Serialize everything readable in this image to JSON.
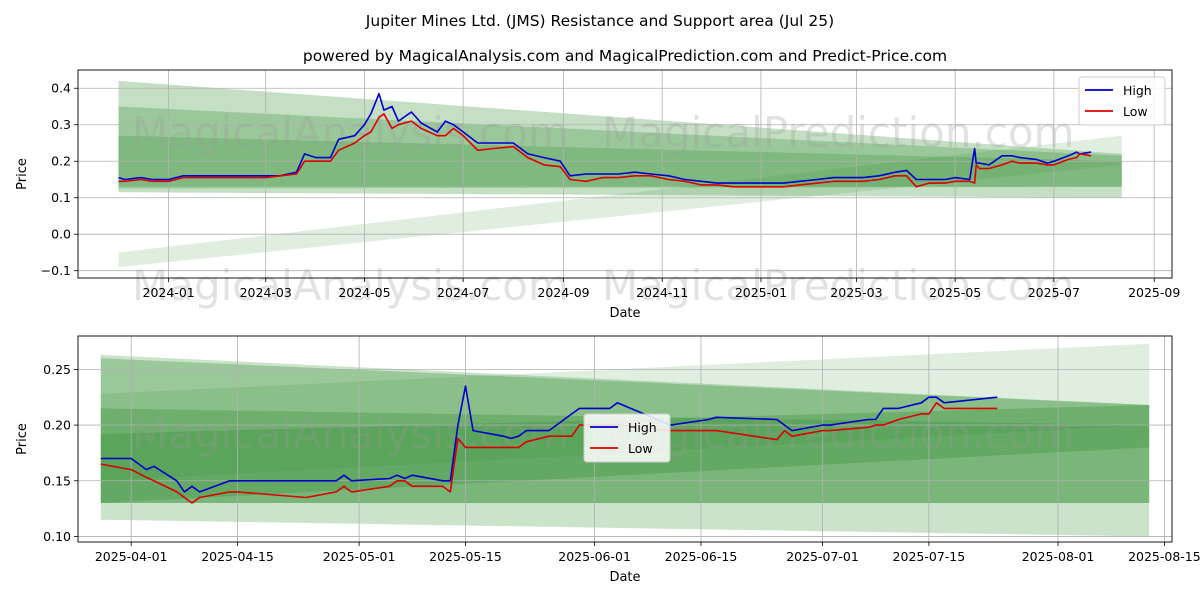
{
  "title": "Jupiter Mines Ltd. (JMS) Resistance and Support area (Jul 25)",
  "subtitle": "powered by MagicalAnalysis.com and MagicalPrediction.com and Predict-Price.com",
  "watermarks": [
    "MagicalAnalysis.com",
    "MagicalPrediction.com"
  ],
  "colors": {
    "high": "#0000cc",
    "low": "#dd0000",
    "band": "#2e8b2e",
    "grid": "#b0b0b0"
  },
  "chart_data": [
    {
      "type": "line",
      "xlabel": "Date",
      "ylabel": "Price",
      "ylim": [
        -0.12,
        0.45
      ],
      "yticks": [
        -0.1,
        0.0,
        0.1,
        0.2,
        0.3,
        0.4
      ],
      "ytick_labels": [
        "−0.1",
        "0.0",
        "0.1",
        "0.2",
        "0.3",
        "0.4"
      ],
      "xlim": [
        "2023-11-06",
        "2025-09-12"
      ],
      "xticks": [
        "2024-01-01",
        "2024-03-01",
        "2024-05-01",
        "2024-07-01",
        "2024-09-01",
        "2024-11-01",
        "2025-01-01",
        "2025-03-01",
        "2025-05-01",
        "2025-07-01",
        "2025-09-01"
      ],
      "xtick_labels": [
        "2024-01",
        "2024-03",
        "2024-05",
        "2024-07",
        "2024-09",
        "2024-11",
        "2025-01",
        "2025-03",
        "2025-05",
        "2025-07",
        "2025-09"
      ],
      "grid": true,
      "legend": {
        "position": "top-right",
        "entries": [
          "High",
          "Low"
        ]
      },
      "bands": [
        {
          "x": [
            "2023-12-01",
            "2025-08-12"
          ],
          "upper": [
            0.42,
            0.22
          ],
          "lower": [
            0.115,
            0.1
          ],
          "opacity": 0.28
        },
        {
          "x": [
            "2023-12-01",
            "2025-08-12"
          ],
          "upper": [
            0.35,
            0.215
          ],
          "lower": [
            0.13,
            0.13
          ],
          "opacity": 0.28
        },
        {
          "x": [
            "2023-12-01",
            "2025-08-12"
          ],
          "upper": [
            0.27,
            0.2
          ],
          "lower": [
            0.125,
            0.13
          ],
          "opacity": 0.25
        },
        {
          "x": [
            "2023-12-01",
            "2025-08-12"
          ],
          "upper": [
            -0.05,
            0.27
          ],
          "lower": [
            -0.09,
            0.19
          ],
          "opacity": 0.15
        }
      ],
      "series": [
        {
          "name": "High",
          "x": [
            "2023-12-01",
            "2023-12-05",
            "2023-12-15",
            "2023-12-22",
            "2024-01-01",
            "2024-01-10",
            "2024-01-20",
            "2024-02-01",
            "2024-02-15",
            "2024-03-01",
            "2024-03-10",
            "2024-03-20",
            "2024-03-25",
            "2024-04-01",
            "2024-04-10",
            "2024-04-15",
            "2024-04-25",
            "2024-05-01",
            "2024-05-05",
            "2024-05-10",
            "2024-05-13",
            "2024-05-18",
            "2024-05-22",
            "2024-05-30",
            "2024-06-05",
            "2024-06-15",
            "2024-06-20",
            "2024-06-25",
            "2024-07-01",
            "2024-07-10",
            "2024-07-20",
            "2024-08-01",
            "2024-08-10",
            "2024-08-20",
            "2024-08-30",
            "2024-09-05",
            "2024-09-15",
            "2024-09-25",
            "2024-10-05",
            "2024-10-15",
            "2024-10-25",
            "2024-11-05",
            "2024-11-15",
            "2024-11-25",
            "2024-12-05",
            "2024-12-15",
            "2024-12-25",
            "2025-01-05",
            "2025-01-15",
            "2025-01-25",
            "2025-02-05",
            "2025-02-15",
            "2025-02-25",
            "2025-03-05",
            "2025-03-15",
            "2025-03-25",
            "2025-04-01",
            "2025-04-07",
            "2025-04-15",
            "2025-04-25",
            "2025-05-01",
            "2025-05-10",
            "2025-05-13",
            "2025-05-14",
            "2025-05-16",
            "2025-05-22",
            "2025-05-30",
            "2025-06-05",
            "2025-06-10",
            "2025-06-20",
            "2025-06-27",
            "2025-07-01",
            "2025-07-10",
            "2025-07-15",
            "2025-07-17",
            "2025-07-24"
          ],
          "values": [
            0.155,
            0.15,
            0.155,
            0.15,
            0.15,
            0.16,
            0.16,
            0.16,
            0.16,
            0.16,
            0.16,
            0.17,
            0.22,
            0.21,
            0.21,
            0.26,
            0.27,
            0.3,
            0.33,
            0.385,
            0.34,
            0.35,
            0.31,
            0.335,
            0.305,
            0.28,
            0.31,
            0.3,
            0.28,
            0.25,
            0.25,
            0.25,
            0.22,
            0.21,
            0.2,
            0.16,
            0.165,
            0.165,
            0.165,
            0.17,
            0.165,
            0.16,
            0.15,
            0.145,
            0.14,
            0.14,
            0.14,
            0.14,
            0.14,
            0.145,
            0.15,
            0.155,
            0.155,
            0.155,
            0.16,
            0.17,
            0.175,
            0.15,
            0.15,
            0.15,
            0.155,
            0.15,
            0.235,
            0.195,
            0.195,
            0.19,
            0.215,
            0.215,
            0.21,
            0.205,
            0.195,
            0.2,
            0.215,
            0.225,
            0.22,
            0.225
          ]
        },
        {
          "name": "Low",
          "x": [
            "2023-12-01",
            "2023-12-05",
            "2023-12-15",
            "2023-12-22",
            "2024-01-01",
            "2024-01-10",
            "2024-01-20",
            "2024-02-01",
            "2024-02-15",
            "2024-03-01",
            "2024-03-10",
            "2024-03-20",
            "2024-03-25",
            "2024-04-01",
            "2024-04-10",
            "2024-04-15",
            "2024-04-25",
            "2024-05-01",
            "2024-05-05",
            "2024-05-10",
            "2024-05-13",
            "2024-05-18",
            "2024-05-22",
            "2024-05-30",
            "2024-06-05",
            "2024-06-15",
            "2024-06-20",
            "2024-06-25",
            "2024-07-01",
            "2024-07-10",
            "2024-07-20",
            "2024-08-01",
            "2024-08-10",
            "2024-08-20",
            "2024-08-30",
            "2024-09-05",
            "2024-09-15",
            "2024-09-25",
            "2024-10-05",
            "2024-10-15",
            "2024-10-25",
            "2024-11-05",
            "2024-11-15",
            "2024-11-25",
            "2024-12-05",
            "2024-12-15",
            "2024-12-25",
            "2025-01-05",
            "2025-01-15",
            "2025-01-25",
            "2025-02-05",
            "2025-02-15",
            "2025-02-25",
            "2025-03-05",
            "2025-03-15",
            "2025-03-25",
            "2025-04-01",
            "2025-04-07",
            "2025-04-15",
            "2025-04-25",
            "2025-05-01",
            "2025-05-10",
            "2025-05-13",
            "2025-05-14",
            "2025-05-16",
            "2025-05-22",
            "2025-05-30",
            "2025-06-05",
            "2025-06-10",
            "2025-06-20",
            "2025-06-27",
            "2025-07-01",
            "2025-07-10",
            "2025-07-15",
            "2025-07-17",
            "2025-07-24"
          ],
          "values": [
            0.145,
            0.145,
            0.15,
            0.145,
            0.145,
            0.155,
            0.155,
            0.155,
            0.155,
            0.155,
            0.16,
            0.165,
            0.2,
            0.2,
            0.2,
            0.23,
            0.25,
            0.27,
            0.28,
            0.32,
            0.33,
            0.29,
            0.3,
            0.31,
            0.29,
            0.27,
            0.27,
            0.29,
            0.27,
            0.23,
            0.235,
            0.24,
            0.21,
            0.19,
            0.185,
            0.15,
            0.145,
            0.155,
            0.155,
            0.16,
            0.16,
            0.15,
            0.145,
            0.135,
            0.135,
            0.13,
            0.13,
            0.13,
            0.13,
            0.135,
            0.14,
            0.145,
            0.145,
            0.145,
            0.15,
            0.16,
            0.16,
            0.13,
            0.14,
            0.14,
            0.145,
            0.145,
            0.14,
            0.19,
            0.18,
            0.18,
            0.19,
            0.2,
            0.195,
            0.195,
            0.19,
            0.19,
            0.205,
            0.21,
            0.22,
            0.215
          ]
        }
      ]
    },
    {
      "type": "line",
      "xlabel": "Date",
      "ylabel": "Price",
      "ylim": [
        0.095,
        0.28
      ],
      "yticks": [
        0.1,
        0.15,
        0.2,
        0.25
      ],
      "ytick_labels": [
        "0.10",
        "0.15",
        "0.20",
        "0.25"
      ],
      "xlim": [
        "2025-03-25",
        "2025-08-16"
      ],
      "xticks": [
        "2025-04-01",
        "2025-04-15",
        "2025-05-01",
        "2025-05-15",
        "2025-06-01",
        "2025-06-15",
        "2025-07-01",
        "2025-07-15",
        "2025-08-01",
        "2025-08-15"
      ],
      "xtick_labels": [
        "2025-04-01",
        "2025-04-15",
        "2025-05-01",
        "2025-05-15",
        "2025-06-01",
        "2025-06-15",
        "2025-07-01",
        "2025-07-15",
        "2025-08-01",
        "2025-08-15"
      ],
      "grid": true,
      "legend": {
        "position": "center",
        "entries": [
          "High",
          "Low"
        ]
      },
      "bands": [
        {
          "x": [
            "2025-03-28",
            "2025-08-13"
          ],
          "upper": [
            0.263,
            0.218
          ],
          "lower": [
            0.115,
            0.1
          ],
          "opacity": 0.25
        },
        {
          "x": [
            "2025-03-28",
            "2025-08-13"
          ],
          "upper": [
            0.26,
            0.218
          ],
          "lower": [
            0.13,
            0.13
          ],
          "opacity": 0.3
        },
        {
          "x": [
            "2025-03-28",
            "2025-08-13"
          ],
          "upper": [
            0.215,
            0.2
          ],
          "lower": [
            0.13,
            0.13
          ],
          "opacity": 0.3
        },
        {
          "x": [
            "2025-03-28",
            "2025-08-13"
          ],
          "upper": [
            0.192,
            0.218
          ],
          "lower": [
            0.13,
            0.18
          ],
          "opacity": 0.3
        },
        {
          "x": [
            "2025-03-28",
            "2025-08-13"
          ],
          "upper": [
            0.228,
            0.273
          ],
          "lower": [
            0.15,
            0.2
          ],
          "opacity": 0.15
        }
      ],
      "series": [
        {
          "name": "High",
          "x": [
            "2025-03-28",
            "2025-04-01",
            "2025-04-03",
            "2025-04-04",
            "2025-04-07",
            "2025-04-08",
            "2025-04-09",
            "2025-04-10",
            "2025-04-14",
            "2025-04-15",
            "2025-04-24",
            "2025-04-28",
            "2025-04-29",
            "2025-04-30",
            "2025-05-05",
            "2025-05-06",
            "2025-05-07",
            "2025-05-08",
            "2025-05-12",
            "2025-05-13",
            "2025-05-14",
            "2025-05-15",
            "2025-05-16",
            "2025-05-20",
            "2025-05-21",
            "2025-05-22",
            "2025-05-23",
            "2025-05-26",
            "2025-05-29",
            "2025-05-30",
            "2025-06-02",
            "2025-06-03",
            "2025-06-04",
            "2025-06-11",
            "2025-06-16",
            "2025-06-17",
            "2025-06-25",
            "2025-06-26",
            "2025-06-27",
            "2025-07-01",
            "2025-07-02",
            "2025-07-07",
            "2025-07-08",
            "2025-07-09",
            "2025-07-11",
            "2025-07-14",
            "2025-07-15",
            "2025-07-16",
            "2025-07-17",
            "2025-07-24"
          ],
          "values": [
            0.17,
            0.17,
            0.16,
            0.163,
            0.15,
            0.14,
            0.145,
            0.14,
            0.15,
            0.15,
            0.15,
            0.15,
            0.155,
            0.15,
            0.152,
            0.155,
            0.152,
            0.155,
            0.15,
            0.15,
            0.2,
            0.235,
            0.195,
            0.19,
            0.188,
            0.19,
            0.195,
            0.195,
            0.21,
            0.215,
            0.215,
            0.215,
            0.22,
            0.2,
            0.205,
            0.207,
            0.205,
            0.2,
            0.195,
            0.2,
            0.2,
            0.205,
            0.205,
            0.215,
            0.215,
            0.22,
            0.225,
            0.225,
            0.22,
            0.225
          ]
        },
        {
          "name": "Low",
          "x": [
            "2025-03-28",
            "2025-04-01",
            "2025-04-03",
            "2025-04-04",
            "2025-04-07",
            "2025-04-08",
            "2025-04-09",
            "2025-04-10",
            "2025-04-14",
            "2025-04-15",
            "2025-04-24",
            "2025-04-28",
            "2025-04-29",
            "2025-04-30",
            "2025-05-05",
            "2025-05-06",
            "2025-05-07",
            "2025-05-08",
            "2025-05-12",
            "2025-05-13",
            "2025-05-14",
            "2025-05-15",
            "2025-05-16",
            "2025-05-20",
            "2025-05-21",
            "2025-05-22",
            "2025-05-23",
            "2025-05-26",
            "2025-05-29",
            "2025-05-30",
            "2025-06-02",
            "2025-06-03",
            "2025-06-04",
            "2025-06-11",
            "2025-06-16",
            "2025-06-17",
            "2025-06-25",
            "2025-06-26",
            "2025-06-27",
            "2025-07-01",
            "2025-07-02",
            "2025-07-07",
            "2025-07-08",
            "2025-07-09",
            "2025-07-11",
            "2025-07-14",
            "2025-07-15",
            "2025-07-16",
            "2025-07-17",
            "2025-07-24"
          ],
          "values": [
            0.165,
            0.16,
            0.153,
            0.15,
            0.14,
            0.135,
            0.13,
            0.135,
            0.14,
            0.14,
            0.135,
            0.14,
            0.145,
            0.14,
            0.145,
            0.15,
            0.15,
            0.145,
            0.145,
            0.14,
            0.188,
            0.18,
            0.18,
            0.18,
            0.18,
            0.18,
            0.185,
            0.19,
            0.19,
            0.2,
            0.2,
            0.2,
            0.2,
            0.195,
            0.195,
            0.195,
            0.187,
            0.195,
            0.19,
            0.195,
            0.195,
            0.198,
            0.2,
            0.2,
            0.205,
            0.21,
            0.21,
            0.22,
            0.215,
            0.215
          ]
        }
      ]
    }
  ]
}
